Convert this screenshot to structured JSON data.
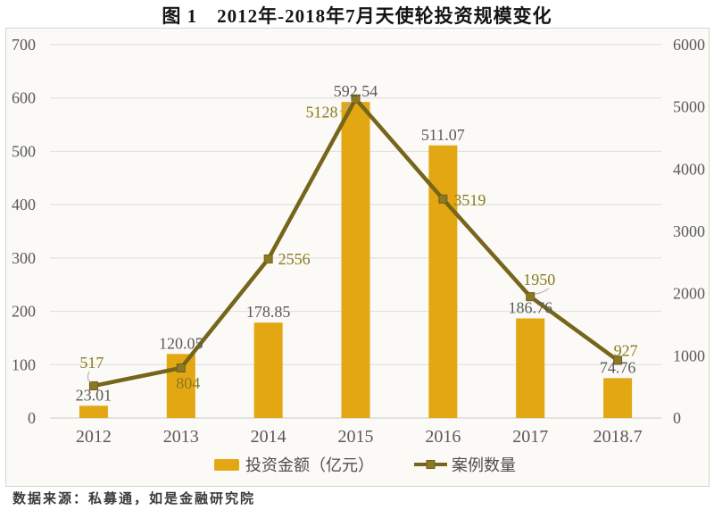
{
  "title": "图 1　2012年-2018年7月天使轮投资规模变化",
  "source": "数据来源：私募通，如是金融研究院",
  "chart_data": {
    "type": "bar+line combo",
    "categories": [
      "2012",
      "2013",
      "2014",
      "2015",
      "2016",
      "2017",
      "2018.7"
    ],
    "series": [
      {
        "name": "投资金额（亿元）",
        "type": "bar",
        "axis": "left",
        "color": "#E3A713",
        "values": [
          23.01,
          120.05,
          178.85,
          592.54,
          511.07,
          186.76,
          74.76
        ]
      },
      {
        "name": "案例数量",
        "type": "line",
        "axis": "right",
        "color": "#76651A",
        "marker_color": "#8B7A24",
        "values": [
          517,
          804,
          2556,
          5128,
          3519,
          1950,
          927
        ]
      }
    ],
    "axes": {
      "left": {
        "min": 0,
        "max": 700,
        "step": 100
      },
      "right": {
        "min": 0,
        "max": 6000,
        "step": 1000
      }
    },
    "grid": true,
    "legend_position": "bottom",
    "colors": {
      "bar_label": "#595959",
      "line_label": "#8a7a1e",
      "tick_label": "#595959",
      "gridline": "#dcdcdc",
      "baseline": "#c9c9c9",
      "leader": "#a9a9a9"
    }
  }
}
